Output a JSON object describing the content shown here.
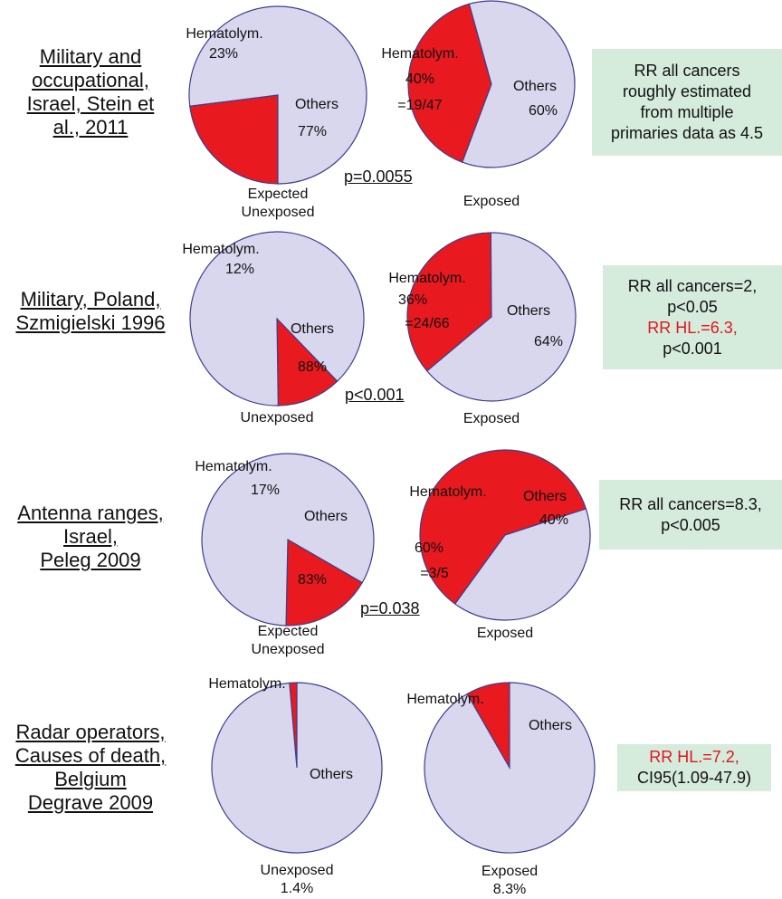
{
  "colors": {
    "hematolym": "#e8191f",
    "others": "#d9d7ee",
    "pie_edge": "#3b3f8f",
    "rr_box": "#d5ebdc",
    "rr_red_text": "#e0161f"
  },
  "chart_data": [
    {
      "type": "pie",
      "study": [
        "Military and",
        "occupational,",
        "Israel, Stein et",
        "al., 2011"
      ],
      "p_value": "p=0.0055",
      "rr_text": [
        {
          "text": "RR all cancers",
          "red": false
        },
        {
          "text": "roughly estimated",
          "red": false
        },
        {
          "text": "from multiple",
          "red": false
        },
        {
          "text": "primaries data as 4.5",
          "red": false
        }
      ],
      "pies": [
        {
          "caption": [
            "Expected",
            "Unexposed"
          ],
          "slices": [
            {
              "label": "Hematolym.",
              "value": 23,
              "pct_label": "23%",
              "extra": ""
            },
            {
              "label": "Others",
              "value": 77,
              "pct_label": "77%",
              "extra": ""
            }
          ]
        },
        {
          "caption": [
            "Exposed"
          ],
          "slices": [
            {
              "label": "Hematolym.",
              "value": 40,
              "pct_label": "40%",
              "extra": "=19/47"
            },
            {
              "label": "Others",
              "value": 60,
              "pct_label": "60%",
              "extra": ""
            }
          ]
        }
      ]
    },
    {
      "type": "pie",
      "study": [
        "Military, Poland,",
        "Szmigielski 1996"
      ],
      "p_value": "p<0.001",
      "rr_text": [
        {
          "text": "RR all cancers=2,",
          "red": false
        },
        {
          "text": "p<0.05",
          "red": false
        },
        {
          "text": "RR HL.=6.3,",
          "red": true
        },
        {
          "text": "p<0.001",
          "red": false
        }
      ],
      "pies": [
        {
          "caption": [
            "Unexposed"
          ],
          "slices": [
            {
              "label": "Hematolym.",
              "value": 12,
              "pct_label": "12%",
              "extra": ""
            },
            {
              "label": "Others",
              "value": 88,
              "pct_label": "88%",
              "extra": ""
            }
          ]
        },
        {
          "caption": [
            "Exposed"
          ],
          "slices": [
            {
              "label": "Hematolym.",
              "value": 36,
              "pct_label": "36%",
              "extra": "=24/66"
            },
            {
              "label": "Others",
              "value": 64,
              "pct_label": "64%",
              "extra": ""
            }
          ]
        }
      ]
    },
    {
      "type": "pie",
      "study": [
        "Antenna ranges,",
        "Israel,",
        "Peleg 2009"
      ],
      "p_value": "p=0.038",
      "rr_text": [
        {
          "text": "RR all cancers=8.3,",
          "red": false
        },
        {
          "text": "p<0.005",
          "red": false
        }
      ],
      "pies": [
        {
          "caption": [
            "Expected",
            "Unexposed"
          ],
          "slices": [
            {
              "label": "Hematolym.",
              "value": 17,
              "pct_label": "17%",
              "extra": ""
            },
            {
              "label": "Others",
              "value": 83,
              "pct_label": "83%",
              "extra": ""
            }
          ]
        },
        {
          "caption": [
            "Exposed"
          ],
          "slices": [
            {
              "label": "Hematolym.",
              "value": 60,
              "pct_label": "60%",
              "extra": "=3/5"
            },
            {
              "label": "Others",
              "value": 40,
              "pct_label": "40%",
              "extra": ""
            }
          ]
        }
      ]
    },
    {
      "type": "pie",
      "study": [
        "Radar operators,",
        "Causes of death,",
        "Belgium",
        " Degrave 2009"
      ],
      "p_value": "",
      "rr_text": [
        {
          "text": "RR HL.=7.2,",
          "red": true
        },
        {
          "text": "CI95(1.09-47.9)",
          "red": false
        }
      ],
      "pies": [
        {
          "caption": [
            "Unexposed",
            "1.4%"
          ],
          "slices": [
            {
              "label": "Hematolym.",
              "value": 1.4,
              "pct_label": "",
              "extra": ""
            },
            {
              "label": "Others",
              "value": 98.6,
              "pct_label": "",
              "extra": ""
            }
          ]
        },
        {
          "caption": [
            "Exposed",
            "8.3%"
          ],
          "slices": [
            {
              "label": "Hematolym.",
              "value": 8.3,
              "pct_label": "",
              "extra": ""
            },
            {
              "label": "Others",
              "value": 91.7,
              "pct_label": "",
              "extra": ""
            }
          ]
        }
      ]
    }
  ]
}
